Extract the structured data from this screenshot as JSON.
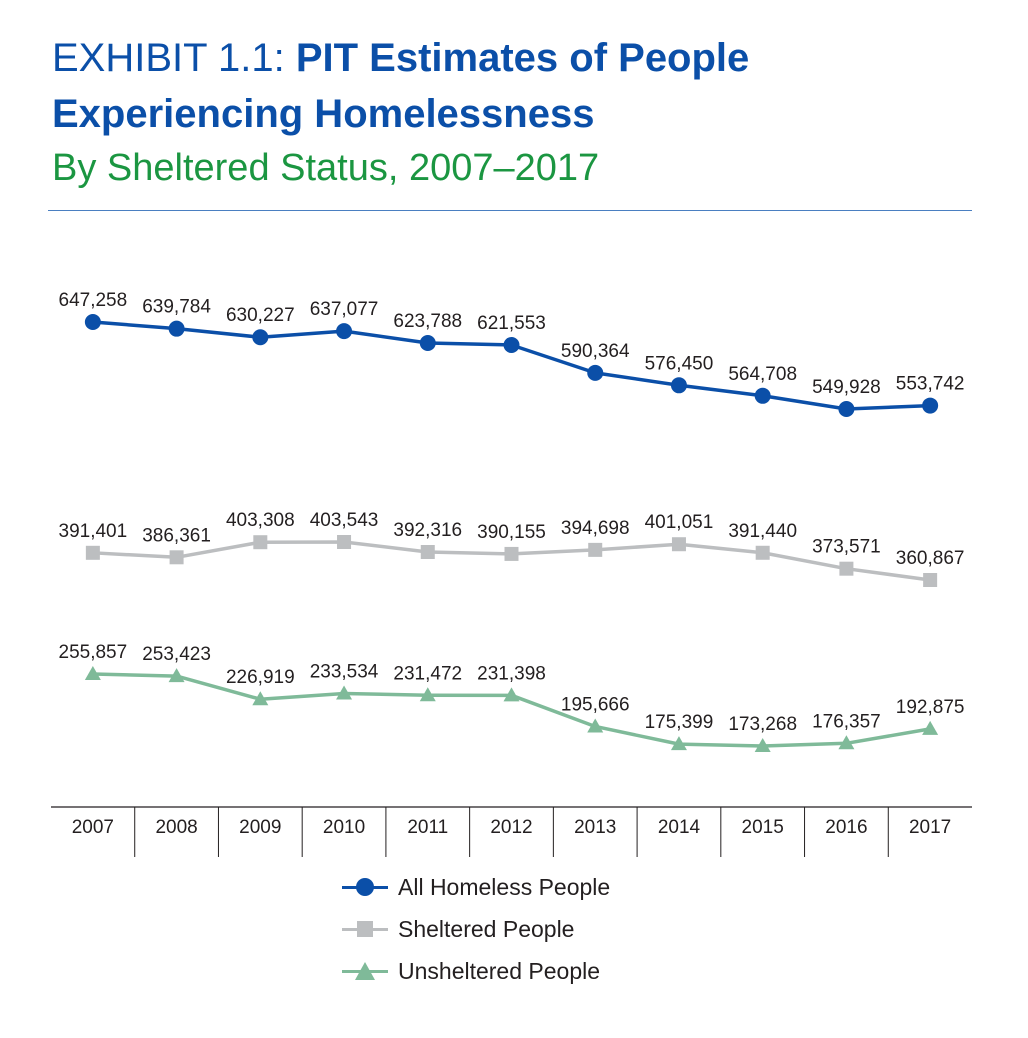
{
  "header": {
    "exhibit_label": "EXHIBIT 1.1:",
    "title_bold_1": "PIT Estimates of People",
    "title_bold_2": "Experiencing Homelessness",
    "subtitle": "By Sheltered Status, 2007–2017"
  },
  "colors": {
    "title_blue": "#0b4fa8",
    "subtitle_green": "#1b9641",
    "all_homeless": "#0b4fa8",
    "sheltered": "#bcbec0",
    "unsheltered": "#7fba99"
  },
  "chart_data": {
    "type": "line",
    "categories": [
      "2007",
      "2008",
      "2009",
      "2010",
      "2011",
      "2012",
      "2013",
      "2014",
      "2015",
      "2016",
      "2017"
    ],
    "series": [
      {
        "name": "All Homeless People",
        "marker": "circle",
        "color": "#0b4fa8",
        "values": [
          647258,
          639784,
          630227,
          637077,
          623788,
          621553,
          590364,
          576450,
          564708,
          549928,
          553742
        ],
        "labels": [
          "647,258",
          "639,784",
          "630,227",
          "637,077",
          "623,788",
          "621,553",
          "590,364",
          "576,450",
          "564,708",
          "549,928",
          "553,742"
        ]
      },
      {
        "name": "Sheltered People",
        "marker": "square",
        "color": "#bcbec0",
        "values": [
          391401,
          386361,
          403308,
          403543,
          392316,
          390155,
          394698,
          401051,
          391440,
          373571,
          360867
        ],
        "labels": [
          "391,401",
          "386,361",
          "403,308",
          "403,543",
          "392,316",
          "390,155",
          "394,698",
          "401,051",
          "391,440",
          "373,571",
          "360,867"
        ]
      },
      {
        "name": "Unsheltered People",
        "marker": "triangle",
        "color": "#7fba99",
        "values": [
          255857,
          253423,
          226919,
          233534,
          231472,
          231398,
          195666,
          175399,
          173268,
          176357,
          192875
        ],
        "labels": [
          "255,857",
          "253,423",
          "226,919",
          "233,534",
          "231,472",
          "231,398",
          "195,666",
          "175,399",
          "173,268",
          "176,357",
          "192,875"
        ]
      }
    ],
    "legend_position": "bottom-center",
    "grid": false
  }
}
